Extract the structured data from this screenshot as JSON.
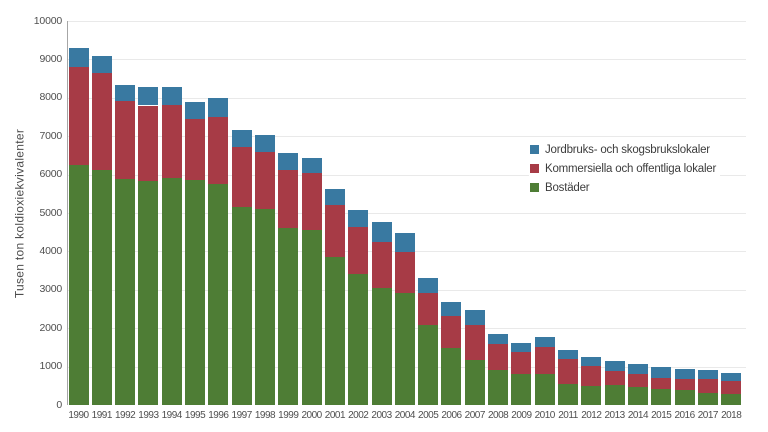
{
  "page": {
    "background": "#ffffff"
  },
  "axis": {
    "y_title": "Tusen ton koldioxiekvivalenter",
    "y_ticks": [
      0,
      1000,
      2000,
      3000,
      4000,
      5000,
      6000,
      7000,
      8000,
      9000,
      10000
    ]
  },
  "colors": {
    "bostader": "#4e7d35",
    "kommersiella": "#a73b46",
    "jordbruks": "#3979a1",
    "gridline": "#e9e9e9",
    "axis_line": "#a6a6a6",
    "tick_text": "#4f4f4f",
    "legend_text": "#3d3d3d"
  },
  "chart_data": {
    "type": "bar",
    "stacked": true,
    "title": "",
    "xlabel": "",
    "ylabel": "Tusen ton koldioxiekvivalenter",
    "ylim": [
      0,
      10000
    ],
    "ytick_interval": 1000,
    "grid": "horizontal",
    "legend_position": "middle-right",
    "legend_order_top_to_bottom": [
      "Jordbruks- och skogsbrukslokaler",
      "Kommersiella och offentliga lokaler",
      "Bostäder"
    ],
    "categories": [
      "1990",
      "1991",
      "1992",
      "1993",
      "1994",
      "1995",
      "1996",
      "1997",
      "1998",
      "1999",
      "2000",
      "2001",
      "2002",
      "2003",
      "2004",
      "2005",
      "2006",
      "2007",
      "2008",
      "2009",
      "2010",
      "2011",
      "2012",
      "2013",
      "2014",
      "2015",
      "2016",
      "2017",
      "2018"
    ],
    "series": [
      {
        "name": "Bostäder",
        "color": "#4e7d35",
        "values": [
          6260,
          6120,
          5880,
          5830,
          5920,
          5850,
          5750,
          5150,
          5100,
          4600,
          4550,
          3850,
          3400,
          3060,
          2910,
          2080,
          1480,
          1170,
          910,
          820,
          800,
          560,
          500,
          520,
          480,
          430,
          380,
          310,
          280
        ]
      },
      {
        "name": "Kommersiella och offentliga lokaler",
        "color": "#a73b46",
        "values": [
          2540,
          2530,
          2050,
          1970,
          1900,
          1600,
          1760,
          1580,
          1500,
          1530,
          1490,
          1360,
          1230,
          1180,
          1070,
          850,
          840,
          910,
          670,
          550,
          720,
          630,
          520,
          370,
          330,
          280,
          310,
          360,
          340
        ]
      },
      {
        "name": "Jordbruks- och skogsbrukslokaler",
        "color": "#3979a1",
        "values": [
          490,
          430,
          410,
          490,
          470,
          440,
          480,
          440,
          430,
          430,
          390,
          410,
          450,
          520,
          490,
          370,
          350,
          390,
          270,
          240,
          260,
          240,
          220,
          260,
          250,
          270,
          240,
          240,
          220
        ]
      }
    ],
    "totals": [
      9290,
      9080,
      8340,
      8290,
      8290,
      7890,
      7990,
      7170,
      7030,
      6560,
      6430,
      5620,
      5080,
      4760,
      4470,
      3300,
      2670,
      2470,
      1850,
      1610,
      1780,
      1430,
      1240,
      1150,
      1060,
      980,
      930,
      910,
      840
    ]
  }
}
